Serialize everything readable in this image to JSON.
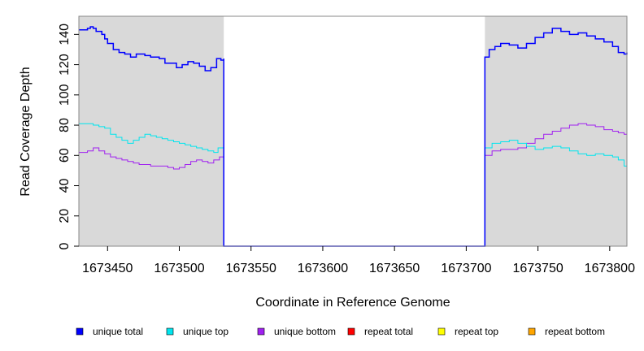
{
  "chart_data": {
    "type": "line",
    "title": "",
    "xlabel": "Coordinate in Reference Genome",
    "ylabel": "Read Coverage Depth",
    "xlim": [
      1673430,
      1673812
    ],
    "ylim": [
      0,
      152
    ],
    "x_ticks": [
      1673450,
      1673500,
      1673550,
      1673600,
      1673650,
      1673700,
      1673750,
      1673800
    ],
    "x_tick_labels": [
      "1673450",
      "1673500",
      "1673550",
      "1673600",
      "1673650",
      "1673700",
      "1673750",
      "1673800"
    ],
    "y_ticks": [
      0,
      20,
      40,
      60,
      80,
      100,
      120,
      140
    ],
    "y_tick_labels": [
      "0",
      "20",
      "40",
      "60",
      "80",
      "100",
      "120",
      "140"
    ],
    "grid": false,
    "legend_position": "bottom",
    "shaded_regions": [
      {
        "x_start": 1673430,
        "x_end": 1673531,
        "color": "#d9d9d9"
      },
      {
        "x_start": 1673713,
        "x_end": 1673812,
        "color": "#d9d9d9"
      }
    ],
    "series": [
      {
        "name": "unique total",
        "color": "#0000ff",
        "step": true,
        "x": [
          1673430,
          1673436,
          1673438,
          1673440,
          1673442,
          1673446,
          1673448,
          1673450,
          1673454,
          1673458,
          1673462,
          1673466,
          1673470,
          1673476,
          1673480,
          1673486,
          1673490,
          1673494,
          1673498,
          1673502,
          1673506,
          1673510,
          1673514,
          1673518,
          1673522,
          1673526,
          1673529,
          1673531,
          1673531,
          1673713,
          1673713,
          1673716,
          1673720,
          1673724,
          1673730,
          1673736,
          1673742,
          1673748,
          1673754,
          1673760,
          1673766,
          1673772,
          1673778,
          1673784,
          1673790,
          1673796,
          1673802,
          1673806,
          1673810,
          1673812
        ],
        "y": [
          143,
          144,
          145,
          144,
          142,
          140,
          137,
          134,
          130,
          128,
          127,
          125,
          127,
          126,
          125,
          124,
          121,
          121,
          118,
          120,
          122,
          121,
          119,
          116,
          118,
          124,
          123,
          124,
          0,
          0,
          125,
          130,
          132,
          134,
          133,
          131,
          134,
          138,
          141,
          144,
          142,
          140,
          141,
          139,
          137,
          135,
          132,
          128,
          127,
          128
        ]
      },
      {
        "name": "unique top",
        "color": "#00e5ee",
        "step": true,
        "x": [
          1673430,
          1673436,
          1673440,
          1673444,
          1673448,
          1673452,
          1673456,
          1673460,
          1673464,
          1673468,
          1673472,
          1673476,
          1673480,
          1673484,
          1673488,
          1673492,
          1673496,
          1673500,
          1673504,
          1673508,
          1673512,
          1673516,
          1673520,
          1673524,
          1673527,
          1673531,
          1673531,
          1673713,
          1673713,
          1673718,
          1673724,
          1673730,
          1673736,
          1673742,
          1673748,
          1673754,
          1673760,
          1673766,
          1673772,
          1673778,
          1673784,
          1673790,
          1673796,
          1673802,
          1673806,
          1673810,
          1673812
        ],
        "y": [
          81,
          81,
          80,
          79,
          78,
          74,
          72,
          70,
          68,
          70,
          72,
          74,
          73,
          72,
          71,
          70,
          69,
          68,
          67,
          66,
          65,
          64,
          63,
          62,
          65,
          64,
          0,
          0,
          65,
          68,
          69,
          70,
          68,
          66,
          64,
          65,
          66,
          65,
          63,
          61,
          60,
          61,
          60,
          59,
          57,
          53,
          54
        ]
      },
      {
        "name": "unique bottom",
        "color": "#a020f0",
        "step": true,
        "x": [
          1673430,
          1673436,
          1673440,
          1673444,
          1673448,
          1673452,
          1673456,
          1673460,
          1673464,
          1673468,
          1673472,
          1673476,
          1673480,
          1673484,
          1673488,
          1673492,
          1673496,
          1673500,
          1673504,
          1673508,
          1673512,
          1673516,
          1673520,
          1673524,
          1673528,
          1673531,
          1673531,
          1673713,
          1673713,
          1673718,
          1673724,
          1673730,
          1673736,
          1673742,
          1673748,
          1673754,
          1673760,
          1673766,
          1673772,
          1673778,
          1673784,
          1673790,
          1673796,
          1673802,
          1673806,
          1673810,
          1673812
        ],
        "y": [
          62,
          63,
          65,
          63,
          61,
          59,
          58,
          57,
          56,
          55,
          54,
          54,
          53,
          53,
          53,
          52,
          51,
          52,
          54,
          56,
          57,
          56,
          55,
          57,
          59,
          60,
          0,
          0,
          60,
          63,
          64,
          64,
          65,
          68,
          71,
          74,
          76,
          78,
          80,
          81,
          80,
          79,
          77,
          76,
          75,
          74,
          75
        ]
      },
      {
        "name": "repeat total",
        "color": "#ff0000",
        "step": true,
        "x": [
          1673430,
          1673812
        ],
        "y": [
          0,
          0
        ]
      },
      {
        "name": "repeat top",
        "color": "#ffff00",
        "step": true,
        "x": [
          1673430,
          1673812
        ],
        "y": [
          0,
          0
        ]
      },
      {
        "name": "repeat bottom",
        "color": "#ffa500",
        "step": true,
        "x": [
          1673430,
          1673812
        ],
        "y": [
          0,
          0
        ]
      }
    ],
    "legend": [
      {
        "label": "unique total",
        "color": "#0000ff"
      },
      {
        "label": "unique top",
        "color": "#00e5ee"
      },
      {
        "label": "unique bottom",
        "color": "#a020f0"
      },
      {
        "label": "repeat total",
        "color": "#ff0000"
      },
      {
        "label": "repeat top",
        "color": "#ffff00"
      },
      {
        "label": "repeat bottom",
        "color": "#ffa500"
      }
    ]
  }
}
